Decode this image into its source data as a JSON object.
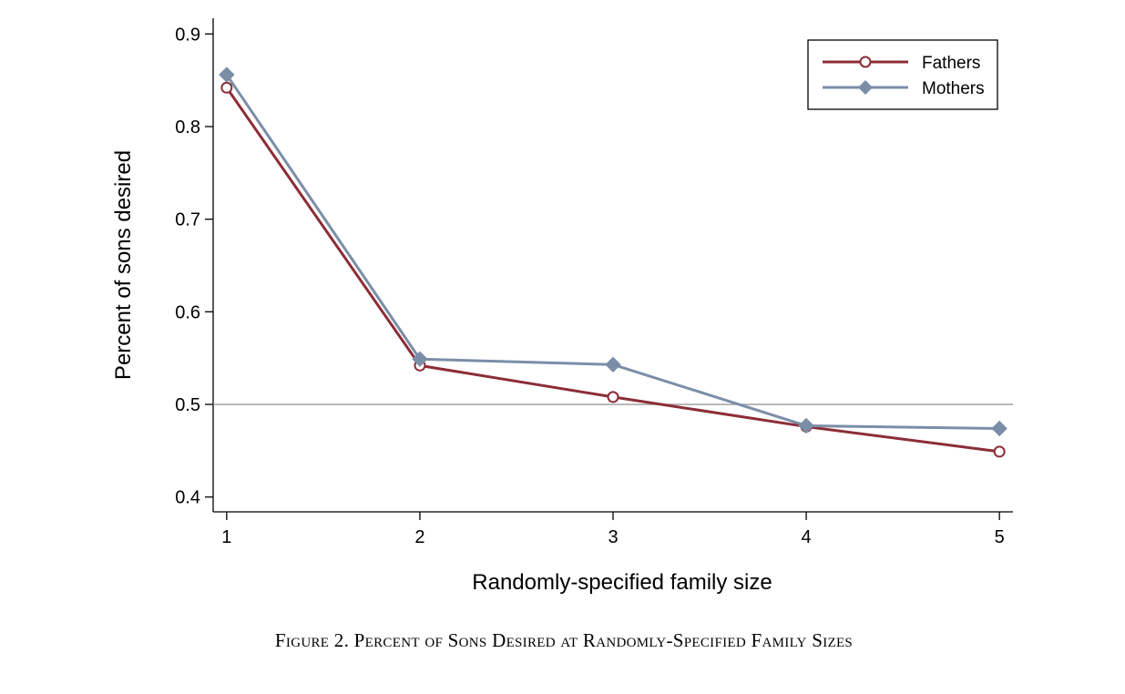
{
  "chart_data": {
    "type": "line",
    "caption": "Figure 2. Percent of Sons Desired at Randomly-Specified Family Sizes",
    "x_label": "Randomly-specified family size",
    "y_label": "Percent of sons desired",
    "x": [
      1,
      2,
      3,
      4,
      5
    ],
    "series": [
      {
        "name": "Fathers",
        "color": "#8c2d37",
        "marker": "circle",
        "values": [
          0.842,
          0.542,
          0.508,
          0.476,
          0.449
        ]
      },
      {
        "name": "Mothers",
        "color": "#7b8ea8",
        "marker": "diamond",
        "values": [
          0.856,
          0.549,
          0.543,
          0.477,
          0.474
        ]
      }
    ],
    "xlim": [
      0.93,
      5.07
    ],
    "xticks": [
      1,
      2,
      3,
      4,
      5
    ],
    "ylim": [
      0.384,
      0.917
    ],
    "yticks": [
      0.4,
      0.5,
      0.6,
      0.7,
      0.8,
      0.9
    ],
    "reference_line": 0.5,
    "legend": "top-right"
  }
}
